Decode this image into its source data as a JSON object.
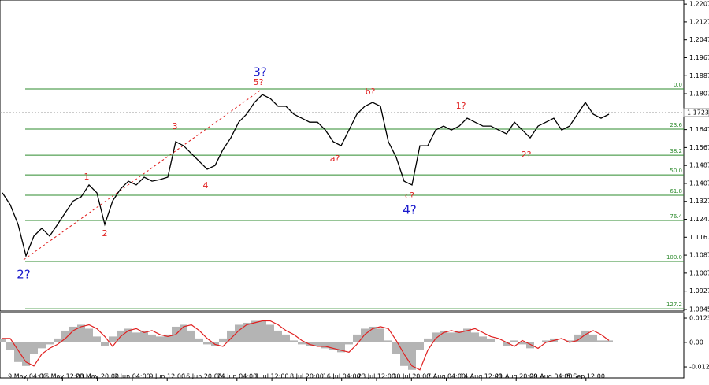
{
  "chart_data": [
    {
      "type": "line",
      "color": "#000000",
      "values": [
        1.1365,
        1.1312,
        1.1224,
        1.1084,
        1.1172,
        1.1207,
        1.1172,
        1.1224,
        1.1277,
        1.1329,
        1.1347,
        1.14,
        1.1365,
        1.1224,
        1.1329,
        1.1382,
        1.1417,
        1.14,
        1.1435,
        1.1417,
        1.1424,
        1.1435,
        1.1593,
        1.1575,
        1.154,
        1.1505,
        1.147,
        1.1487,
        1.1558,
        1.161,
        1.168,
        1.1716,
        1.1768,
        1.1803,
        1.1786,
        1.1751,
        1.1751,
        1.1716,
        1.1698,
        1.168,
        1.168,
        1.1645,
        1.1593,
        1.1575,
        1.1645,
        1.1716,
        1.1751,
        1.1768,
        1.1751,
        1.1593,
        1.1523,
        1.1417,
        1.14,
        1.1575,
        1.1575,
        1.1645,
        1.1663,
        1.1645,
        1.1663,
        1.1698,
        1.168,
        1.1663,
        1.1663,
        1.1645,
        1.1628,
        1.168,
        1.1645,
        1.161,
        1.1663,
        1.168,
        1.1698,
        1.1645,
        1.1663,
        1.1716,
        1.1768,
        1.1716,
        1.1698,
        1.1716
      ],
      "ylim": [
        1.0838,
        1.2225
      ],
      "yticks": [
        1.2207,
        1.2127,
        1.2047,
        1.1967,
        1.1887,
        1.1807,
        1.1647,
        1.1567,
        1.1487,
        1.1407,
        1.1327,
        1.1247,
        1.1167,
        1.1087,
        1.1007,
        1.0927,
        1.0845
      ],
      "last_price": 1.1723,
      "fib_color": "#2e8b2e",
      "fib_levels": [
        {
          "label": "0.0",
          "price": 1.1828
        },
        {
          "label": "23.6",
          "price": 1.1649
        },
        {
          "label": "38.2",
          "price": 1.1533
        },
        {
          "label": "50.0",
          "price": 1.1445
        },
        {
          "label": "61.8",
          "price": 1.1354
        },
        {
          "label": "76.4",
          "price": 1.1242
        },
        {
          "label": "100.0",
          "price": 1.1059
        },
        {
          "label": "127.2",
          "price": 1.0848
        }
      ],
      "wave_labels": [
        {
          "text": "3?",
          "color": "#1a1acc"
        },
        {
          "text": "5?",
          "color": "#e02020"
        },
        {
          "text": "b?",
          "color": "#e02020"
        },
        {
          "text": "1?",
          "color": "#e02020"
        },
        {
          "text": "3",
          "color": "#e02020"
        },
        {
          "text": "1",
          "color": "#e02020"
        },
        {
          "text": "4",
          "color": "#e02020"
        },
        {
          "text": "a?",
          "color": "#e02020"
        },
        {
          "text": "2?",
          "color": "#e02020"
        },
        {
          "text": "c?",
          "color": "#e02020"
        },
        {
          "text": "4?",
          "color": "#1a1acc"
        },
        {
          "text": "2",
          "color": "#e02020"
        },
        {
          "text": "2?",
          "color": "#1a1acc"
        }
      ],
      "time_labels": [
        "9 May 04:00",
        "16 May 12:00",
        "23 May 20:00",
        "2 Jun 04:00",
        "9 Jun 12:00",
        "16 Jun 20:00",
        "24 Jun 04:00",
        "1 Jul 12:00",
        "8 Jul 20:00",
        "16 Jul 04:00",
        "23 Jul 12:00",
        "30 Jul 20:00",
        "7 Aug 04:00",
        "14 Aug 12:00",
        "21 Aug 20:00",
        "29 Aug 04:00",
        "5 Sep 12:00"
      ]
    },
    {
      "type": "oscillator",
      "series": [
        {
          "color": "#b4b4b4",
          "values": [
            0.002,
            -0.004,
            -0.01,
            -0.012,
            -0.006,
            -0.003,
            -0.001,
            0.002,
            0.006,
            0.008,
            0.009,
            0.007,
            0.003,
            -0.002,
            0.003,
            0.006,
            0.007,
            0.005,
            0.006,
            0.004,
            0.003,
            0.004,
            0.008,
            0.009,
            0.006,
            0.002,
            -0.001,
            -0.002,
            0.002,
            0.006,
            0.009,
            0.01,
            0.011,
            0.011,
            0.009,
            0.006,
            0.004,
            0.001,
            -0.001,
            -0.002,
            -0.002,
            -0.003,
            -0.004,
            -0.005,
            -0.001,
            0.004,
            0.007,
            0.008,
            0.007,
            0.001,
            -0.006,
            -0.012,
            -0.014,
            -0.004,
            0.002,
            0.005,
            0.006,
            0.005,
            0.006,
            0.007,
            0.005,
            0.003,
            0.002,
            0.0,
            -0.002,
            0.001,
            -0.001,
            -0.003,
            0.0,
            0.001,
            0.002,
            0.0,
            0.001,
            0.004,
            0.006,
            0.004,
            0.001,
            0.001
          ]
        },
        {
          "color": "#e02020",
          "values": [
            0.002,
            0.002,
            -0.004,
            -0.01,
            -0.012,
            -0.006,
            -0.003,
            -0.001,
            0.002,
            0.006,
            0.008,
            0.009,
            0.007,
            0.003,
            -0.002,
            0.003,
            0.006,
            0.007,
            0.005,
            0.006,
            0.004,
            0.003,
            0.004,
            0.008,
            0.009,
            0.006,
            0.002,
            -0.001,
            -0.002,
            0.002,
            0.006,
            0.009,
            0.01,
            0.011,
            0.011,
            0.009,
            0.006,
            0.004,
            0.001,
            -0.001,
            -0.002,
            -0.002,
            -0.003,
            -0.004,
            -0.005,
            -0.001,
            0.004,
            0.007,
            0.008,
            0.007,
            0.001,
            -0.006,
            -0.012,
            -0.014,
            -0.004,
            0.002,
            0.005,
            0.006,
            0.005,
            0.006,
            0.007,
            0.005,
            0.003,
            0.002,
            0.0,
            -0.002,
            0.001,
            -0.001,
            -0.003,
            0.0,
            0.001,
            0.002,
            0.0,
            0.001,
            0.004,
            0.006,
            0.004,
            0.001
          ]
        }
      ],
      "ylim": [
        -0.0181,
        0.0152
      ],
      "yticks": [
        0.01238,
        {
          "value": 0,
          "label": "0.00"
        },
        -0.0125
      ]
    }
  ]
}
